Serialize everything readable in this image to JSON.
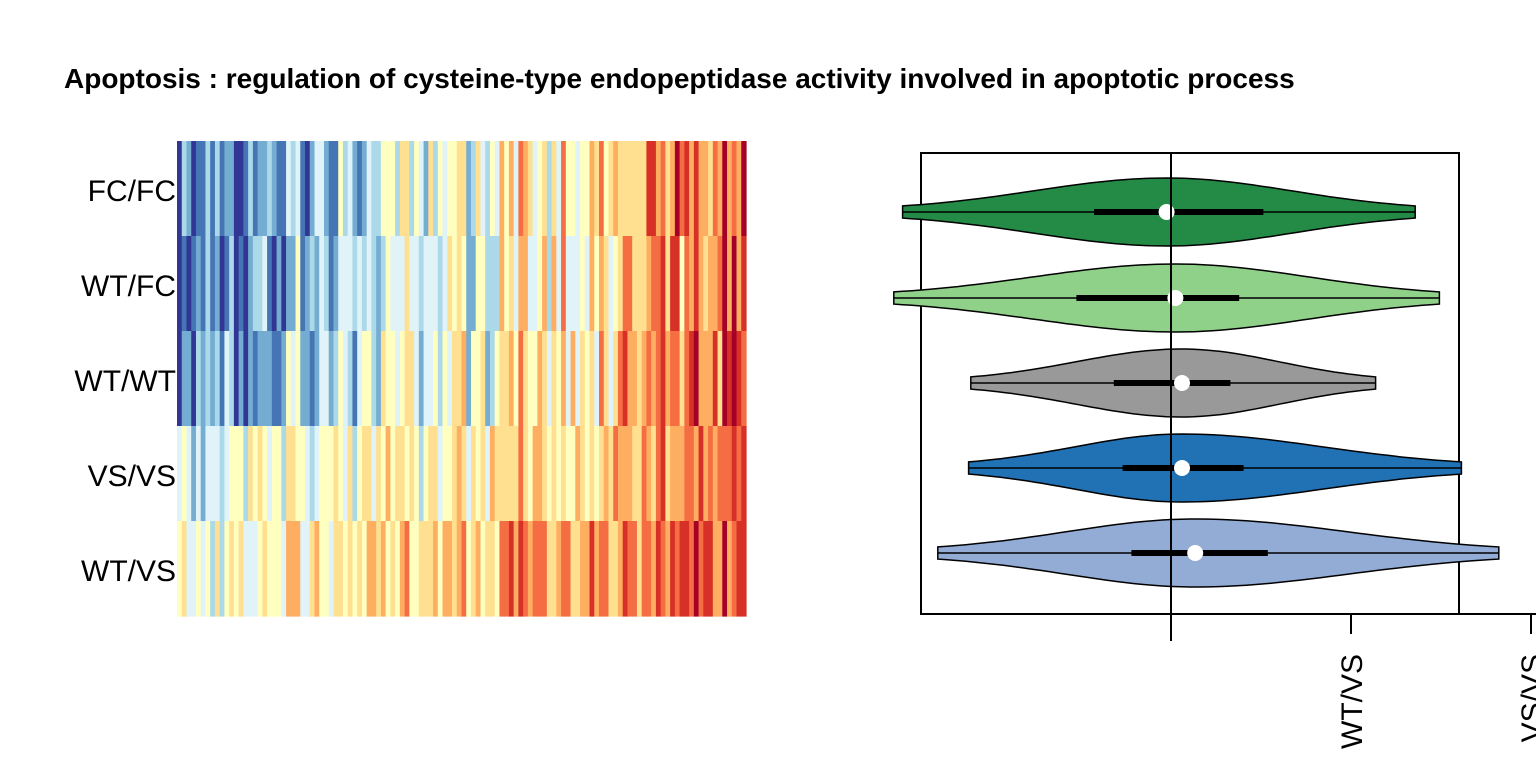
{
  "title": "Apoptosis : regulation of cysteine-type endopeptidase activity involved in apoptotic process",
  "chart_data": [
    {
      "type": "heatmap",
      "rows": [
        "FC/FC",
        "WT/FC",
        "WT/WT",
        "VS/VS",
        "WT/VS"
      ],
      "n_columns": 120,
      "palette": [
        "#313695",
        "#4575b4",
        "#74add1",
        "#abd9e9",
        "#e0f3f8",
        "#ffffbf",
        "#fee090",
        "#fdae61",
        "#f46d43",
        "#d73027",
        "#a50026"
      ],
      "row_mean_levels": [
        0.46,
        0.45,
        0.5,
        0.57,
        0.64
      ],
      "left_to_right_trend": "blue (low) on the left, yellow/orange (high) on the right"
    },
    {
      "type": "violin",
      "orientation": "horizontal",
      "groups": [
        "FC/FC",
        "WT/FC",
        "WT/WT",
        "VS/VS",
        "WT/VS"
      ],
      "colors": [
        "#238b45",
        "#90d18a",
        "#999999",
        "#2171b5",
        "#92acd6"
      ],
      "reference_line": 0,
      "stats": [
        {
          "group": "FC/FC",
          "min": -1.22,
          "q1": -0.35,
          "median": -0.02,
          "q3": 0.42,
          "max": 1.11
        },
        {
          "group": "WT/FC",
          "min": -1.26,
          "q1": -0.43,
          "median": 0.02,
          "q3": 0.31,
          "max": 1.22
        },
        {
          "group": "WT/WT",
          "min": -0.91,
          "q1": -0.26,
          "median": 0.05,
          "q3": 0.27,
          "max": 0.93
        },
        {
          "group": "VS/VS",
          "min": -0.92,
          "q1": -0.22,
          "median": 0.05,
          "q3": 0.33,
          "max": 1.32
        },
        {
          "group": "WT/VS",
          "min": -1.06,
          "q1": -0.18,
          "median": 0.11,
          "q3": 0.44,
          "max": 1.49
        }
      ],
      "x_tick_labels": [
        "WT/VS",
        "VS/VS"
      ]
    }
  ]
}
